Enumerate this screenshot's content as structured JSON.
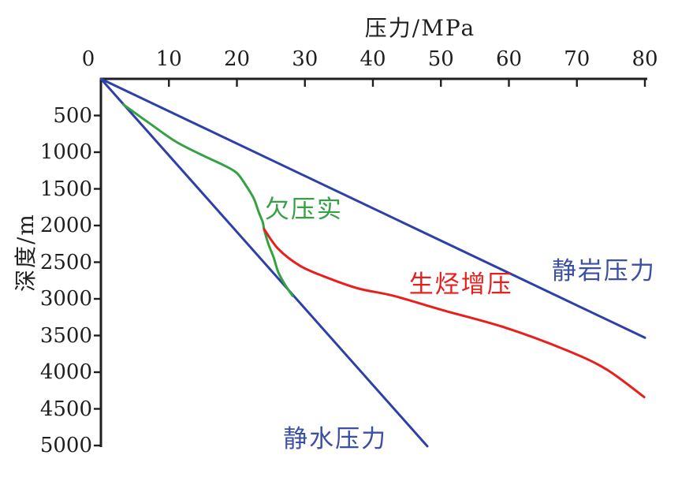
{
  "chart_data": {
    "type": "line",
    "title": "",
    "xlabel": "压力/MPa",
    "ylabel": "深度/m",
    "grid": false,
    "legend_position": "none",
    "x_axis": {
      "position": "top",
      "min": 0,
      "max": 80,
      "ticks": [
        0,
        10,
        20,
        30,
        40,
        50,
        60,
        70,
        80
      ]
    },
    "y_axis": {
      "position": "left",
      "min": 0,
      "max": 5000,
      "inverted": true,
      "ticks": [
        500,
        1000,
        1500,
        2000,
        2500,
        3000,
        3500,
        4000,
        4500,
        5000
      ]
    },
    "series": [
      {
        "key": "lithostatic",
        "name": "静岩压力",
        "color": "#2c41a7",
        "points": [
          [
            0,
            0
          ],
          [
            80,
            3530
          ]
        ]
      },
      {
        "key": "hydrostatic",
        "name": "静水压力",
        "color": "#2c41a7",
        "points": [
          [
            0,
            0
          ],
          [
            48,
            5010
          ]
        ]
      },
      {
        "key": "undercompaction",
        "name": "欠压实",
        "color": "#34a143",
        "points": [
          [
            3.3,
            350
          ],
          [
            7.2,
            610
          ],
          [
            11.0,
            855
          ],
          [
            15.0,
            1045
          ],
          [
            18.0,
            1175
          ],
          [
            20.0,
            1285
          ],
          [
            21.4,
            1465
          ],
          [
            22.5,
            1635
          ],
          [
            23.2,
            1815
          ],
          [
            23.8,
            1955
          ],
          [
            24.0,
            2050
          ],
          [
            24.6,
            2245
          ],
          [
            25.4,
            2435
          ],
          [
            26.1,
            2640
          ],
          [
            27.1,
            2810
          ],
          [
            28.2,
            2960
          ]
        ]
      },
      {
        "key": "hydrocarbon-overpressure",
        "name": "生烃增压",
        "color": "#e8201d",
        "points": [
          [
            24.0,
            2050
          ],
          [
            26.1,
            2320
          ],
          [
            29.2,
            2545
          ],
          [
            32.7,
            2690
          ],
          [
            37.7,
            2855
          ],
          [
            43.1,
            2960
          ],
          [
            50.1,
            3150
          ],
          [
            59.4,
            3390
          ],
          [
            68.6,
            3705
          ],
          [
            74.4,
            3965
          ],
          [
            79.9,
            4340
          ]
        ]
      }
    ],
    "annotations": [
      {
        "key": "undercompaction-label",
        "text": "欠压实",
        "color": "#34a143",
        "x_mpa": 24.1,
        "depth_m": 1600
      },
      {
        "key": "hydrocarbon-overpressure-label",
        "text": "生烃增压",
        "color": "#e8201d",
        "x_mpa": 45.3,
        "depth_m": 2620
      },
      {
        "key": "lithostatic-label",
        "text": "静岩压力",
        "color": "#3b4fa5",
        "x_mpa": 66.3,
        "depth_m": 2440
      },
      {
        "key": "hydrostatic-label",
        "text": "静水压力",
        "color": "#3b4fa5",
        "x_mpa": 26.8,
        "depth_m": 4730
      }
    ]
  },
  "colors": {
    "background": "#ffffff",
    "axis": "#1f1f1f",
    "blue": "#2c41a7",
    "green": "#34a143",
    "red": "#e8201d"
  }
}
